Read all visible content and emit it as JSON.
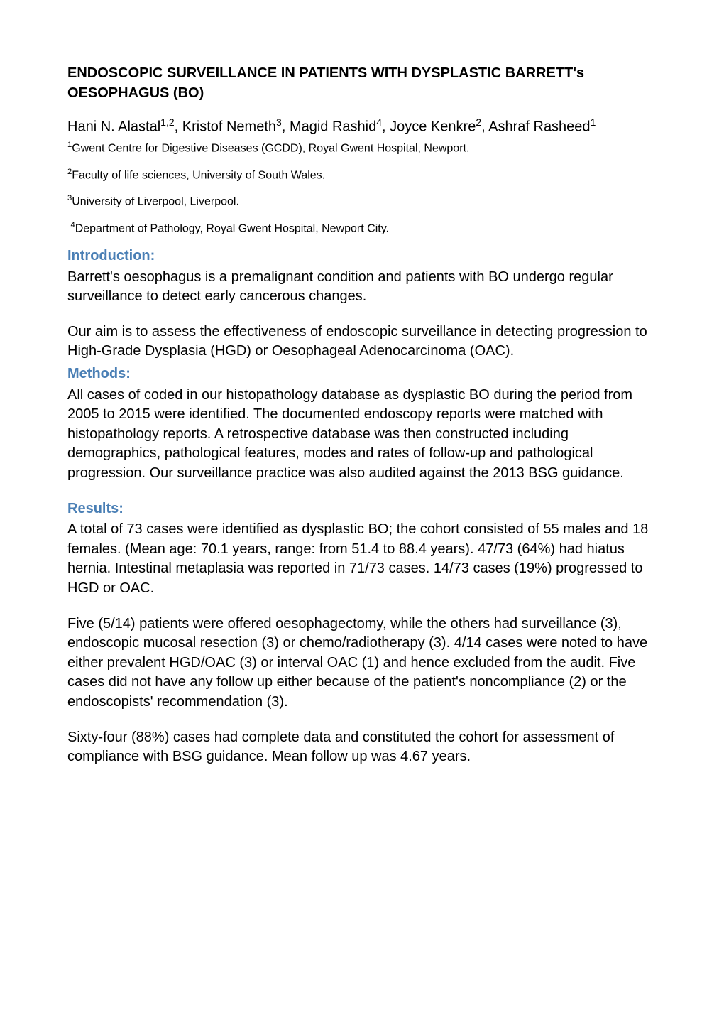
{
  "colors": {
    "heading": "#4a7fb5",
    "text": "#000000",
    "background": "#ffffff"
  },
  "typography": {
    "title_fontsize": 20,
    "body_fontsize": 20,
    "affiliation_fontsize": 16,
    "heading_fontsize": 20,
    "font_family": "Arial",
    "line_height": 1.38
  },
  "title": "ENDOSCOPIC SURVEILLANCE IN PATIENTS WITH DYSPLASTIC BARRETT's OESOPHAGUS (BO)",
  "authors": {
    "list": [
      {
        "name": "Hani N. Alastal",
        "sup": "1,2"
      },
      {
        "name": "Kristof Nemeth",
        "sup": "3"
      },
      {
        "name": "Magid Rashid",
        "sup": "4"
      },
      {
        "name": "Joyce Kenkre",
        "sup": "2"
      },
      {
        "name": "Ashraf Rasheed",
        "sup": "1"
      }
    ]
  },
  "affiliations": [
    {
      "sup": "1",
      "text": "Gwent Centre for Digestive Diseases (GCDD), Royal Gwent Hospital, Newport."
    },
    {
      "sup": "2",
      "text": "Faculty of life sciences, University of South Wales."
    },
    {
      "sup": "3",
      "text": "University of Liverpool, Liverpool."
    },
    {
      "sup": "4",
      "text": "Department of Pathology, Royal Gwent Hospital, Newport City.",
      "leading_space": true
    }
  ],
  "sections": {
    "introduction": {
      "heading": "Introduction:",
      "paragraphs": [
        "Barrett's oesophagus is a premalignant condition and patients with BO undergo regular surveillance to detect early cancerous changes.",
        "Our aim is to assess the effectiveness of endoscopic surveillance in detecting progression to High-Grade Dysplasia (HGD) or Oesophageal Adenocarcinoma (OAC)."
      ]
    },
    "methods": {
      "heading": "Methods:",
      "paragraphs": [
        "All cases of coded in our histopathology database as dysplastic BO during the period from 2005 to 2015 were identified. The documented endoscopy reports were matched with histopathology reports. A retrospective database was then constructed including demographics, pathological features, modes and rates of follow-up and pathological progression. Our surveillance practice was also audited against the 2013 BSG guidance."
      ]
    },
    "results": {
      "heading": "Results:",
      "paragraphs": [
        "A total of 73 cases were identified as dysplastic BO; the cohort consisted of 55 males and 18 females. (Mean age: 70.1 years, range: from 51.4 to 88.4 years). 47/73 (64%) had hiatus hernia. Intestinal metaplasia was reported in 71/73 cases. 14/73 cases (19%) progressed to HGD or OAC.",
        "Five (5/14) patients were offered oesophagectomy, while the others had surveillance (3), endoscopic mucosal resection (3) or chemo/radiotherapy (3). 4/14 cases were noted to have either prevalent HGD/OAC (3) or interval OAC (1) and hence excluded from the audit. Five cases did not have any follow up either because of the patient's noncompliance (2) or the endoscopists' recommendation (3).",
        "Sixty-four (88%) cases had complete data and constituted the cohort for assessment of compliance with BSG guidance. Mean follow up was 4.67 years."
      ]
    }
  }
}
